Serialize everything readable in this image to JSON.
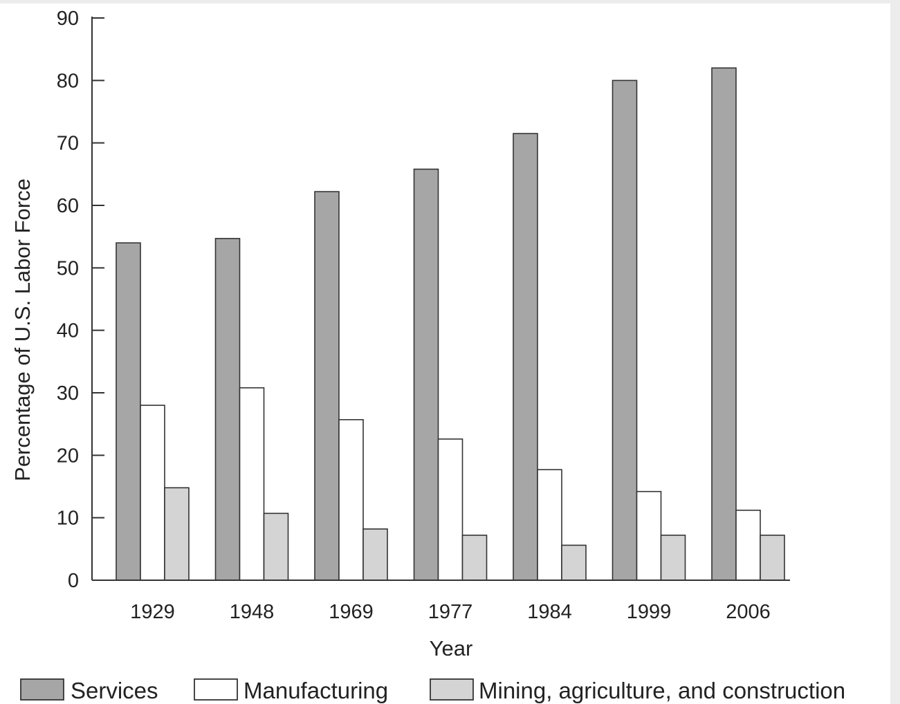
{
  "chart_data": {
    "type": "bar",
    "title": "",
    "xlabel": "Year",
    "ylabel": "Percentage of U.S. Labor Force",
    "categories": [
      "1929",
      "1948",
      "1969",
      "1977",
      "1984",
      "1999",
      "2006"
    ],
    "ylim": [
      0,
      90
    ],
    "yticks": [
      0,
      10,
      20,
      30,
      40,
      50,
      60,
      70,
      80,
      90
    ],
    "grid": false,
    "legend_position": "bottom",
    "series": [
      {
        "name": "Services",
        "color": "#a6a6a6",
        "values": [
          54,
          54.7,
          62.2,
          65.8,
          71.5,
          80,
          82
        ]
      },
      {
        "name": "Manufacturing",
        "color": "#ffffff",
        "values": [
          28,
          30.8,
          25.7,
          22.6,
          17.7,
          14.2,
          11.2
        ]
      },
      {
        "name": "Mining, agriculture, and construction",
        "color": "#d4d4d4",
        "values": [
          14.8,
          10.7,
          8.2,
          7.2,
          5.6,
          7.2,
          7.2
        ]
      }
    ]
  }
}
